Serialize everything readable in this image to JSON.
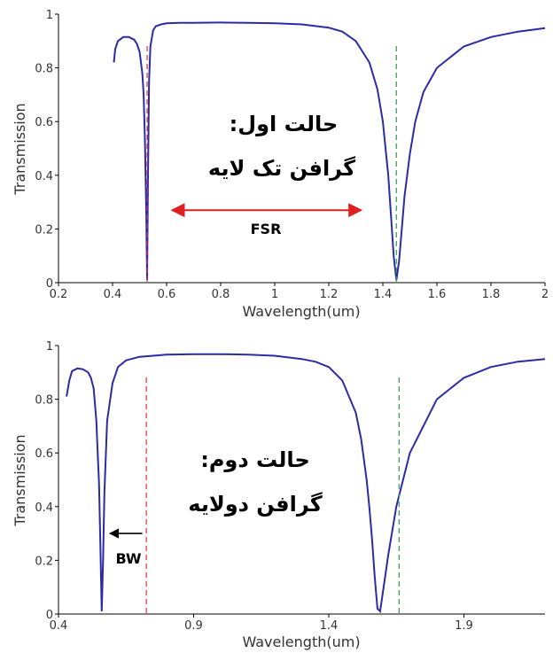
{
  "colors": {
    "curve": "#2b2ba8",
    "red_guide": "#e03030",
    "green_guide": "#2a9a50",
    "fsr_arrow": "#e02020",
    "bw_arrow": "#000000",
    "axis": "#000000"
  },
  "chart_data": [
    {
      "type": "line",
      "xlabel": "Wavelength(um)",
      "ylabel": "Transmission",
      "xlim": [
        0.2,
        2.0
      ],
      "ylim": [
        0,
        1
      ],
      "xticks": [
        "0.2",
        "0.4",
        "0.6",
        "0.8",
        "1",
        "1.2",
        "1.4",
        "1.6",
        "1.8",
        "2"
      ],
      "xtick_values": [
        0.2,
        0.4,
        0.6,
        0.8,
        1.0,
        1.2,
        1.4,
        1.6,
        1.8,
        2.0
      ],
      "yticks": [
        "0",
        "0.2",
        "0.4",
        "0.6",
        "0.8",
        "1"
      ],
      "ytick_values": [
        0,
        0.2,
        0.4,
        0.6,
        0.8,
        1.0
      ],
      "series": [
        {
          "x": [
            0.405,
            0.41,
            0.42,
            0.44,
            0.46,
            0.48,
            0.49,
            0.5,
            0.51,
            0.515,
            0.52,
            0.525,
            0.528,
            0.531,
            0.535,
            0.54,
            0.55,
            0.56,
            0.58,
            0.6,
            0.65,
            0.7,
            0.8,
            0.9,
            1.0,
            1.1,
            1.2,
            1.25,
            1.3,
            1.35,
            1.38,
            1.4,
            1.42,
            1.43,
            1.44,
            1.45,
            1.46,
            1.47,
            1.48,
            1.5,
            1.52,
            1.55,
            1.6,
            1.7,
            1.8,
            1.9,
            2.0
          ],
          "y": [
            0.82,
            0.87,
            0.9,
            0.915,
            0.915,
            0.905,
            0.89,
            0.86,
            0.78,
            0.7,
            0.52,
            0.25,
            0.01,
            0.4,
            0.75,
            0.88,
            0.94,
            0.955,
            0.962,
            0.966,
            0.968,
            0.968,
            0.969,
            0.968,
            0.966,
            0.962,
            0.95,
            0.935,
            0.9,
            0.82,
            0.72,
            0.6,
            0.4,
            0.25,
            0.1,
            0.01,
            0.08,
            0.2,
            0.32,
            0.48,
            0.6,
            0.71,
            0.8,
            0.88,
            0.915,
            0.935,
            0.948
          ]
        }
      ],
      "guides": [
        {
          "x": 0.528,
          "color": "red",
          "style": "dashed"
        },
        {
          "x": 1.45,
          "color": "green",
          "style": "dashed"
        }
      ],
      "annotations": [
        {
          "text": "حالت اول:",
          "type": "label"
        },
        {
          "text": "گرافن تک لایه",
          "type": "label"
        },
        {
          "text": "FSR",
          "type": "arrow",
          "x_from": 0.62,
          "x_to": 1.32,
          "y": 0.27
        }
      ]
    },
    {
      "type": "line",
      "xlabel": "Wavelength(um)",
      "ylabel": "Transmission",
      "xlim": [
        0.4,
        2.2
      ],
      "ylim": [
        0,
        1
      ],
      "xticks": [
        "0.4",
        "0.9",
        "1.4",
        "1.9"
      ],
      "xtick_values": [
        0.4,
        0.9,
        1.4,
        1.9
      ],
      "yticks": [
        "0",
        "0.2",
        "0.4",
        "0.6",
        "0.8",
        "1"
      ],
      "ytick_values": [
        0,
        0.2,
        0.4,
        0.6,
        0.8,
        1.0
      ],
      "series": [
        {
          "x": [
            0.43,
            0.44,
            0.45,
            0.47,
            0.49,
            0.51,
            0.52,
            0.53,
            0.54,
            0.55,
            0.555,
            0.56,
            0.565,
            0.57,
            0.58,
            0.6,
            0.62,
            0.65,
            0.7,
            0.8,
            0.9,
            1.0,
            1.1,
            1.2,
            1.3,
            1.35,
            1.4,
            1.45,
            1.5,
            1.52,
            1.54,
            1.55,
            1.56,
            1.57,
            1.58,
            1.59,
            1.6,
            1.62,
            1.65,
            1.7,
            1.8,
            1.9,
            2.0,
            2.1,
            2.2
          ],
          "y": [
            0.81,
            0.87,
            0.905,
            0.915,
            0.912,
            0.9,
            0.88,
            0.84,
            0.72,
            0.48,
            0.25,
            0.01,
            0.2,
            0.45,
            0.72,
            0.86,
            0.92,
            0.945,
            0.958,
            0.966,
            0.968,
            0.968,
            0.966,
            0.962,
            0.95,
            0.94,
            0.92,
            0.87,
            0.75,
            0.65,
            0.5,
            0.4,
            0.28,
            0.14,
            0.02,
            0.01,
            0.08,
            0.22,
            0.4,
            0.6,
            0.8,
            0.88,
            0.92,
            0.94,
            0.95
          ]
        }
      ],
      "guides": [
        {
          "x": 0.725,
          "color": "red",
          "style": "dashed"
        },
        {
          "x": 1.66,
          "color": "green",
          "style": "dashed"
        }
      ],
      "annotations": [
        {
          "text": "حالت دوم:",
          "type": "label"
        },
        {
          "text": "گرافن دولایه",
          "type": "label"
        },
        {
          "text": "BW",
          "type": "arrow",
          "x_from": 0.71,
          "x_to": 0.59,
          "y": 0.3
        }
      ]
    }
  ]
}
